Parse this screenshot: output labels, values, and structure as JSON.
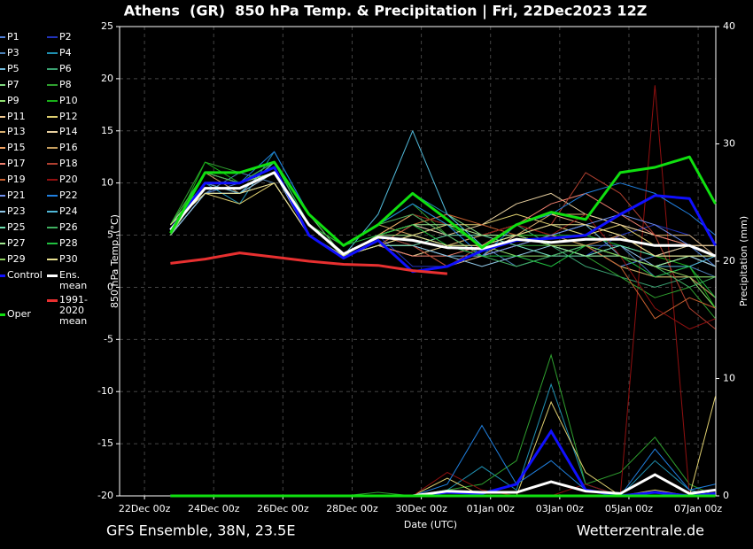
{
  "chart_data": {
    "type": "line",
    "title": "Athens  (GR)  850 hPa Temp. & Precipitation | Fri, 22Dec2023 12Z",
    "ylabel": "850 hPa Temp. (°C)",
    "y2label": "Precipitation (mm)",
    "xlabel": "Date (UTC)",
    "footer_left": "GFS Ensemble, 38N, 23.5E",
    "footer_right": "Wetterzentrale.de",
    "grid": true,
    "xlim": [
      -0.72,
      16.51
    ],
    "xticks": [
      {
        "value": 0,
        "label": "22Dec 00z"
      },
      {
        "value": 2,
        "label": "24Dec 00z"
      },
      {
        "value": 4,
        "label": "26Dec 00z"
      },
      {
        "value": 6,
        "label": "28Dec 00z"
      },
      {
        "value": 8,
        "label": "30Dec 00z"
      },
      {
        "value": 10,
        "label": "01Jan 00z"
      },
      {
        "value": 12,
        "label": "03Jan 00z"
      },
      {
        "value": 14,
        "label": "05Jan 00z"
      },
      {
        "value": 16,
        "label": "07Jan 00z"
      }
    ],
    "ylim": [
      -20,
      25
    ],
    "yticks": [
      25,
      20,
      15,
      10,
      5,
      0,
      -5,
      -10,
      -15,
      -20
    ],
    "y2lim": [
      0,
      40
    ],
    "y2ticks": [
      40,
      30,
      20,
      10,
      0
    ],
    "x": [
      0.75,
      1.75,
      2.75,
      3.75,
      4.75,
      5.75,
      6.75,
      7.75,
      8.75,
      9.75,
      10.75,
      11.75,
      12.75,
      13.75,
      14.75,
      15.75,
      16.5
    ],
    "series": [
      {
        "name": "P1",
        "color": "#4f7fd8",
        "values": [
          5,
          9,
          10,
          11,
          6,
          3,
          4,
          6,
          5,
          3,
          4,
          3,
          4,
          2,
          3,
          4,
          2
        ]
      },
      {
        "name": "P2",
        "color": "#2233bb",
        "values": [
          5.5,
          10,
          9,
          12,
          6,
          3,
          5,
          2,
          2,
          3,
          5,
          4,
          3,
          5,
          6,
          5,
          3
        ]
      },
      {
        "name": "P3",
        "color": "#4a7fb5",
        "values": [
          5,
          9,
          11,
          10,
          5,
          3,
          4,
          5,
          6,
          4,
          2,
          3,
          4,
          4,
          1,
          2,
          1
        ]
      },
      {
        "name": "P4",
        "color": "#1f8fb0",
        "values": [
          6,
          10,
          8,
          13,
          7,
          4,
          6,
          9,
          7,
          4,
          5,
          6,
          5,
          4,
          3,
          4,
          3
        ],
        "precip": [
          0,
          0,
          0,
          0,
          0,
          0,
          0,
          0,
          0.5,
          2.5,
          0.5,
          9.5,
          1,
          0,
          3,
          0.5,
          0
        ]
      },
      {
        "name": "P5",
        "color": "#6fb8d8",
        "values": [
          5,
          9,
          9,
          11,
          5,
          3,
          5,
          4,
          3,
          3,
          4,
          5,
          6,
          3,
          2,
          3,
          2
        ]
      },
      {
        "name": "P6",
        "color": "#3aa070",
        "values": [
          5,
          10,
          9,
          12,
          6,
          3,
          4,
          3,
          4,
          5,
          6,
          4,
          2,
          1,
          0,
          1,
          1
        ]
      },
      {
        "name": "P7",
        "color": "#7fd87f",
        "values": [
          6,
          11,
          10,
          12,
          7,
          3,
          5,
          6,
          7,
          5,
          5,
          5,
          4,
          3,
          2,
          3,
          2
        ]
      },
      {
        "name": "P8",
        "color": "#2fa02f",
        "values": [
          6,
          12,
          11,
          12,
          6,
          4,
          6,
          8,
          5,
          3,
          4,
          4,
          3,
          1,
          -1,
          0,
          -3
        ],
        "precip": [
          0,
          0,
          0,
          0,
          0,
          0,
          0.3,
          0,
          0.5,
          1,
          3,
          12,
          1,
          2,
          5,
          1,
          0
        ]
      },
      {
        "name": "P9",
        "color": "#8fe06f",
        "values": [
          5,
          11,
          10,
          11,
          6,
          3,
          5,
          7,
          6,
          4,
          3,
          3,
          4,
          2,
          1,
          1,
          -2
        ]
      },
      {
        "name": "P10",
        "color": "#18b018",
        "values": [
          5,
          12,
          10,
          12,
          7,
          4,
          6,
          8,
          6,
          4,
          5,
          5,
          5,
          4,
          3,
          2,
          -2
        ]
      },
      {
        "name": "P11",
        "color": "#f0c890",
        "values": [
          6,
          10,
          9,
          11,
          6,
          3,
          4,
          3,
          4,
          5,
          6,
          7,
          6,
          5,
          3,
          4,
          4
        ]
      },
      {
        "name": "P12",
        "color": "#e0d070",
        "values": [
          6,
          9,
          8,
          10,
          5,
          3,
          4,
          5,
          6,
          6,
          7,
          6,
          5,
          6,
          4,
          4,
          3
        ],
        "precip": [
          0,
          0,
          0,
          0,
          0,
          0,
          0,
          0,
          1.5,
          0,
          0,
          8,
          2,
          0,
          0.5,
          0,
          8.5
        ]
      },
      {
        "name": "P13",
        "color": "#d8b070",
        "values": [
          5,
          9,
          9,
          11,
          6,
          3,
          4,
          4,
          2,
          3,
          5,
          7,
          7,
          6,
          5,
          5,
          3
        ]
      },
      {
        "name": "P14",
        "color": "#e8d0a0",
        "values": [
          6,
          10,
          9,
          10,
          5,
          3,
          5,
          6,
          5,
          6,
          8,
          9,
          7,
          6,
          5,
          4,
          4
        ]
      },
      {
        "name": "P15",
        "color": "#f0a060",
        "values": [
          5,
          10,
          10,
          11,
          5,
          3,
          5,
          7,
          5,
          3,
          4,
          5,
          4,
          5,
          3,
          3,
          2
        ]
      },
      {
        "name": "P16",
        "color": "#c8a060",
        "values": [
          6,
          11,
          9,
          12,
          6,
          4,
          6,
          5,
          4,
          5,
          6,
          5,
          4,
          2,
          1,
          1,
          -1
        ]
      },
      {
        "name": "P17",
        "color": "#f08070",
        "values": [
          6,
          10,
          10,
          11,
          6,
          3,
          4,
          3,
          3,
          4,
          6,
          8,
          9,
          7,
          5,
          4,
          3
        ]
      },
      {
        "name": "P18",
        "color": "#b04030",
        "values": [
          5,
          10,
          9,
          12,
          6,
          3,
          5,
          4,
          2,
          4,
          5,
          6,
          11,
          9,
          5,
          -2,
          -4
        ]
      },
      {
        "name": "P19",
        "color": "#c86030",
        "values": [
          6,
          11,
          10,
          11,
          6,
          3,
          4,
          6,
          7,
          6,
          5,
          4,
          4,
          2,
          -3,
          -1,
          -2
        ]
      },
      {
        "name": "P20",
        "color": "#901010",
        "values": [
          5,
          10,
          9,
          11,
          6,
          4,
          6,
          7,
          6,
          5,
          6,
          5,
          7,
          3,
          -2,
          -4,
          -3
        ],
        "precip": [
          0,
          0,
          0,
          0,
          0,
          0,
          0,
          0,
          2,
          0.5,
          0,
          0,
          1,
          0,
          35,
          0,
          0
        ]
      },
      {
        "name": "P21",
        "color": "#7090f0",
        "values": [
          5,
          9,
          9,
          12,
          6,
          3,
          5,
          5,
          4,
          3,
          4,
          5,
          6,
          7,
          6,
          4,
          3
        ]
      },
      {
        "name": "P22",
        "color": "#2080e0",
        "values": [
          5,
          10,
          10,
          13,
          7,
          4,
          6,
          8,
          6,
          3,
          6,
          7,
          9,
          10,
          9,
          7,
          5
        ],
        "precip": [
          0,
          0,
          0,
          0,
          0,
          0,
          0,
          0,
          1,
          6,
          1,
          3,
          0.5,
          0,
          4,
          0.5,
          1
        ]
      },
      {
        "name": "P23",
        "color": "#90c8e8",
        "values": [
          5,
          9,
          9,
          11,
          5,
          3,
          4,
          4,
          3,
          2,
          3,
          4,
          3,
          4,
          2,
          3,
          2
        ]
      },
      {
        "name": "P24",
        "color": "#50b8d8",
        "values": [
          6,
          10,
          9,
          12,
          6,
          3,
          7,
          15,
          7,
          4,
          5,
          4,
          3,
          3,
          2,
          2,
          3
        ]
      },
      {
        "name": "P25",
        "color": "#70e0b0",
        "values": [
          5,
          10,
          10,
          11,
          6,
          3,
          4,
          4,
          5,
          5,
          4,
          3,
          3,
          4,
          3,
          3,
          3
        ]
      },
      {
        "name": "P26",
        "color": "#40b060",
        "values": [
          5,
          11,
          10,
          12,
          7,
          4,
          6,
          7,
          5,
          3,
          2,
          3,
          4,
          3,
          2,
          0,
          1
        ]
      },
      {
        "name": "P27",
        "color": "#a0e890",
        "values": [
          6,
          10,
          10,
          11,
          6,
          3,
          5,
          6,
          6,
          5,
          5,
          4,
          3,
          3,
          2,
          3,
          3
        ]
      },
      {
        "name": "P28",
        "color": "#20c040",
        "values": [
          6,
          11,
          11,
          12,
          6,
          4,
          5,
          6,
          4,
          3,
          3,
          2,
          4,
          3,
          1,
          2,
          -1
        ]
      },
      {
        "name": "P29",
        "color": "#90d060",
        "values": [
          5,
          10,
          10,
          11,
          6,
          3,
          5,
          5,
          4,
          4,
          5,
          4,
          4,
          3,
          2,
          1,
          1
        ]
      },
      {
        "name": "P30",
        "color": "#e8e090",
        "values": [
          6,
          9,
          9,
          10,
          5,
          3,
          4,
          5,
          4,
          4,
          5,
          6,
          6,
          5,
          3,
          3,
          3
        ]
      },
      {
        "name": "Control",
        "color": "#1010ff",
        "width": 3,
        "values": [
          5.5,
          10,
          10,
          11.5,
          5,
          2.8,
          4.5,
          1.5,
          2,
          3.5,
          4.5,
          4.7,
          5,
          7,
          8.8,
          8.5,
          4
        ],
        "precip": [
          0,
          0,
          0,
          0,
          0,
          0,
          0,
          0,
          0.3,
          0.2,
          1,
          5.5,
          0.5,
          0,
          0.3,
          0,
          0.2
        ]
      },
      {
        "name": "Ens. mean",
        "color": "#ffffff",
        "width": 3,
        "values": [
          5.5,
          9.5,
          9.5,
          11,
          6,
          3.2,
          4.8,
          4.5,
          3.8,
          3.7,
          4.6,
          4.3,
          4.6,
          4.6,
          4,
          4,
          3
        ],
        "precip": [
          0,
          0,
          0,
          0,
          0,
          0,
          0,
          0,
          0.4,
          0.3,
          0.3,
          1.2,
          0.4,
          0.2,
          1.8,
          0.2,
          0.5
        ]
      },
      {
        "name": "1991-2020 mean",
        "color": "#e83030",
        "width": 3,
        "values": [
          2.3,
          2.7,
          3.3,
          2.9,
          2.5,
          2.2,
          2.1,
          1.6,
          1.3,
          null,
          null,
          null,
          null,
          null,
          null,
          null,
          null
        ]
      },
      {
        "name": "Oper",
        "color": "#10e010",
        "width": 3,
        "values": [
          5.2,
          11,
          11,
          12,
          7,
          4,
          6,
          9,
          6.5,
          3.8,
          6,
          7.2,
          6.5,
          11,
          11.5,
          12.5,
          8
        ],
        "precip": [
          0,
          0,
          0,
          0,
          0,
          0,
          0,
          0,
          0,
          0,
          0,
          0,
          0,
          0,
          0,
          0,
          0
        ]
      }
    ]
  }
}
